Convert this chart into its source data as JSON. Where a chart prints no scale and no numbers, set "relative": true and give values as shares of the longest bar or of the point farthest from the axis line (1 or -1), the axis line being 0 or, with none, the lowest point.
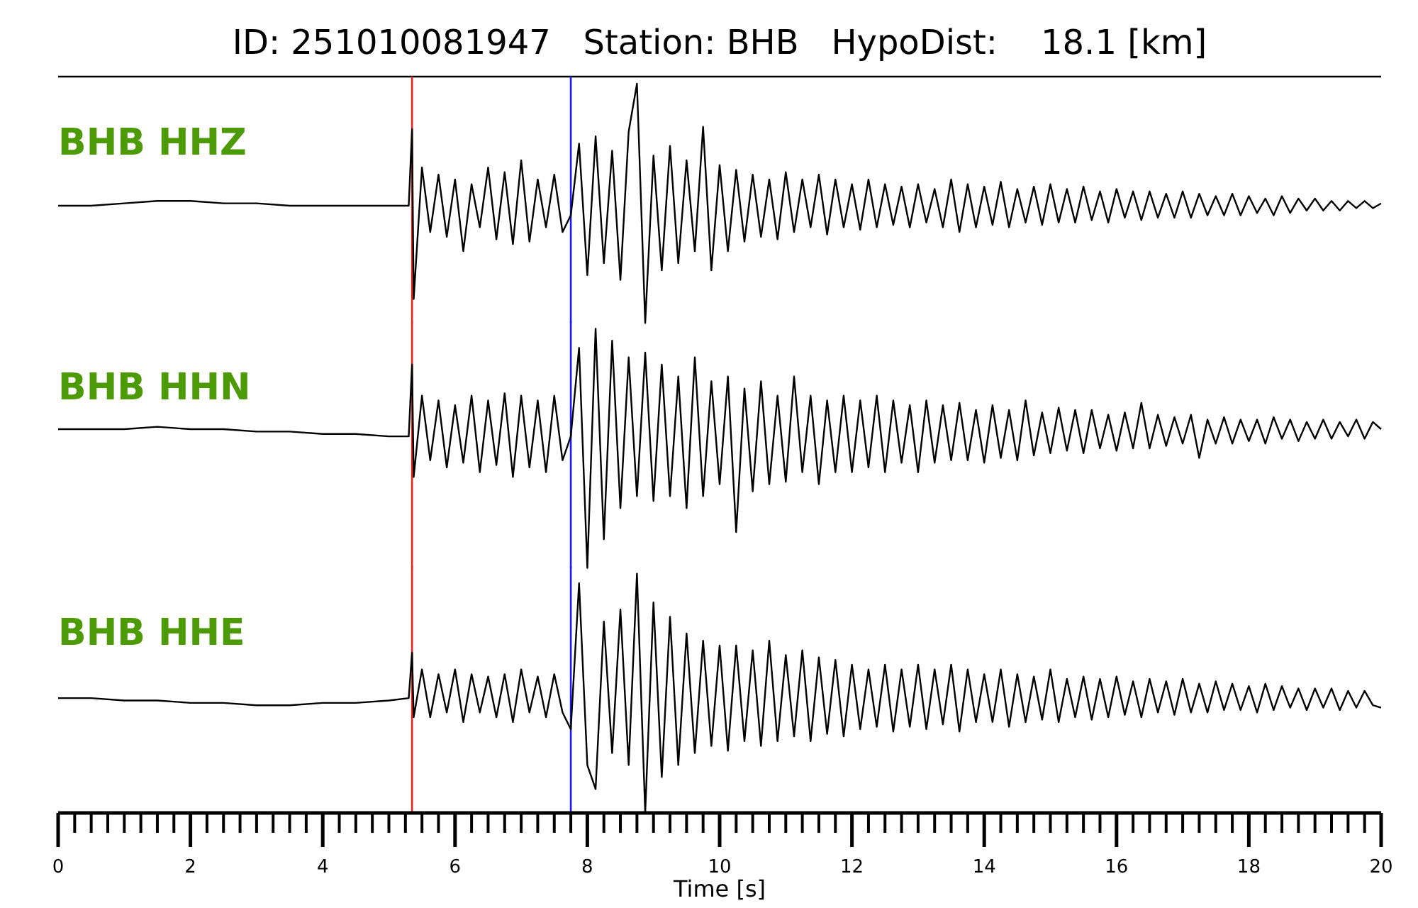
{
  "chart_data": [
    {
      "type": "line",
      "title": "ID: 251010081947   Station: BHB   HypoDist:    18.1 [km]",
      "annotations": [
        "BHB HHZ"
      ],
      "relative": true,
      "xlim": [
        0,
        20
      ],
      "tick_labels": false,
      "x": [
        0,
        0.5,
        1,
        1.5,
        2,
        2.5,
        3,
        3.5,
        4,
        4.5,
        5,
        5.3,
        5.35,
        5.375,
        5.5,
        5.625,
        5.75,
        5.875,
        6,
        6.125,
        6.25,
        6.375,
        6.5,
        6.625,
        6.75,
        6.875,
        7,
        7.125,
        7.25,
        7.375,
        7.5,
        7.625,
        7.75,
        7.875,
        8,
        8.125,
        8.25,
        8.375,
        8.5,
        8.625,
        8.75,
        8.875,
        9,
        9.125,
        9.25,
        9.375,
        9.5,
        9.625,
        9.75,
        9.875,
        10,
        10.125,
        10.25,
        10.375,
        10.5,
        10.625,
        10.75,
        10.875,
        11,
        11.125,
        11.25,
        11.375,
        11.5,
        11.625,
        11.75,
        11.875,
        12,
        12.125,
        12.25,
        12.375,
        12.5,
        12.625,
        12.75,
        12.875,
        13,
        13.125,
        13.25,
        13.375,
        13.5,
        13.625,
        13.75,
        13.875,
        14,
        14.125,
        14.25,
        14.375,
        14.5,
        14.625,
        14.75,
        14.875,
        15,
        15.125,
        15.25,
        15.375,
        15.5,
        15.625,
        15.75,
        15.875,
        16,
        16.125,
        16.25,
        16.375,
        16.5,
        16.625,
        16.75,
        16.875,
        17,
        17.125,
        17.25,
        17.375,
        17.5,
        17.625,
        17.75,
        17.875,
        18,
        18.125,
        18.25,
        18.375,
        18.5,
        18.625,
        18.75,
        18.875,
        19,
        19.125,
        19.25,
        19.375,
        19.5,
        19.625,
        19.75,
        19.875,
        20
      ],
      "series": [
        {
          "color": "#000000",
          "values": [
            0.49,
            0.49,
            0.5,
            0.51,
            0.51,
            0.5,
            0.5,
            0.49,
            0.49,
            0.49,
            0.49,
            0.49,
            0.81,
            0.1,
            0.65,
            0.38,
            0.62,
            0.36,
            0.6,
            0.3,
            0.58,
            0.4,
            0.65,
            0.35,
            0.63,
            0.33,
            0.68,
            0.34,
            0.6,
            0.4,
            0.62,
            0.38,
            0.45,
            0.75,
            0.2,
            0.78,
            0.25,
            0.72,
            0.18,
            0.8,
            1.0,
            0.0,
            0.7,
            0.22,
            0.74,
            0.25,
            0.68,
            0.3,
            0.82,
            0.22,
            0.66,
            0.3,
            0.64,
            0.34,
            0.62,
            0.36,
            0.6,
            0.35,
            0.63,
            0.38,
            0.6,
            0.4,
            0.62,
            0.37,
            0.6,
            0.4,
            0.58,
            0.39,
            0.6,
            0.4,
            0.58,
            0.41,
            0.57,
            0.4,
            0.58,
            0.42,
            0.56,
            0.4,
            0.6,
            0.38,
            0.58,
            0.4,
            0.57,
            0.41,
            0.59,
            0.4,
            0.56,
            0.42,
            0.57,
            0.41,
            0.58,
            0.42,
            0.56,
            0.42,
            0.57,
            0.43,
            0.55,
            0.42,
            0.56,
            0.44,
            0.55,
            0.43,
            0.55,
            0.44,
            0.54,
            0.44,
            0.55,
            0.44,
            0.54,
            0.45,
            0.53,
            0.45,
            0.54,
            0.45,
            0.53,
            0.46,
            0.52,
            0.45,
            0.53,
            0.46,
            0.52,
            0.47,
            0.52,
            0.47,
            0.51,
            0.47,
            0.51,
            0.48,
            0.51,
            0.48,
            0.5
          ]
        }
      ],
      "ref_lines": [
        {
          "axis": "x",
          "value": 5.35,
          "color": "#e8241c"
        },
        {
          "axis": "x",
          "value": 7.75,
          "color": "#1a1aff"
        }
      ]
    },
    {
      "type": "line",
      "annotations": [
        "BHB HHN"
      ],
      "relative": true,
      "xlim": [
        0,
        20
      ],
      "tick_labels": false,
      "x": [
        0,
        0.5,
        1,
        1.5,
        2,
        2.5,
        3,
        3.5,
        4,
        4.5,
        5,
        5.3,
        5.35,
        5.375,
        5.5,
        5.625,
        5.75,
        5.875,
        6,
        6.125,
        6.25,
        6.375,
        6.5,
        6.625,
        6.75,
        6.875,
        7,
        7.125,
        7.25,
        7.375,
        7.5,
        7.625,
        7.75,
        7.875,
        8,
        8.125,
        8.25,
        8.375,
        8.5,
        8.625,
        8.75,
        8.875,
        9,
        9.125,
        9.25,
        9.375,
        9.5,
        9.625,
        9.75,
        9.875,
        10,
        10.125,
        10.25,
        10.375,
        10.5,
        10.625,
        10.75,
        10.875,
        11,
        11.125,
        11.25,
        11.375,
        11.5,
        11.625,
        11.75,
        11.875,
        12,
        12.125,
        12.25,
        12.375,
        12.5,
        12.625,
        12.75,
        12.875,
        13,
        13.125,
        13.25,
        13.375,
        13.5,
        13.625,
        13.75,
        13.875,
        14,
        14.125,
        14.25,
        14.375,
        14.5,
        14.625,
        14.75,
        14.875,
        15,
        15.125,
        15.25,
        15.375,
        15.5,
        15.625,
        15.75,
        15.875,
        16,
        16.125,
        16.25,
        16.375,
        16.5,
        16.625,
        16.75,
        16.875,
        17,
        17.125,
        17.25,
        17.375,
        17.5,
        17.625,
        17.75,
        17.875,
        18,
        18.125,
        18.25,
        18.375,
        18.5,
        18.625,
        18.75,
        18.875,
        19,
        19.125,
        19.25,
        19.375,
        19.5,
        19.625,
        19.75,
        19.875,
        20
      ],
      "series": [
        {
          "color": "#000000",
          "values": [
            0.58,
            0.58,
            0.58,
            0.59,
            0.58,
            0.58,
            0.57,
            0.57,
            0.56,
            0.56,
            0.55,
            0.55,
            0.85,
            0.38,
            0.72,
            0.45,
            0.7,
            0.42,
            0.68,
            0.44,
            0.72,
            0.4,
            0.7,
            0.43,
            0.73,
            0.38,
            0.72,
            0.42,
            0.7,
            0.4,
            0.72,
            0.45,
            0.55,
            0.92,
            0.0,
            1.0,
            0.12,
            0.95,
            0.25,
            0.88,
            0.3,
            0.9,
            0.28,
            0.85,
            0.3,
            0.8,
            0.25,
            0.88,
            0.3,
            0.78,
            0.35,
            0.8,
            0.15,
            0.75,
            0.32,
            0.78,
            0.35,
            0.72,
            0.36,
            0.8,
            0.4,
            0.72,
            0.35,
            0.7,
            0.4,
            0.72,
            0.4,
            0.7,
            0.42,
            0.72,
            0.4,
            0.7,
            0.44,
            0.68,
            0.4,
            0.7,
            0.44,
            0.68,
            0.45,
            0.69,
            0.45,
            0.66,
            0.44,
            0.68,
            0.46,
            0.66,
            0.45,
            0.7,
            0.47,
            0.65,
            0.48,
            0.67,
            0.49,
            0.66,
            0.48,
            0.66,
            0.5,
            0.64,
            0.49,
            0.65,
            0.5,
            0.69,
            0.5,
            0.64,
            0.51,
            0.63,
            0.52,
            0.64,
            0.46,
            0.62,
            0.52,
            0.63,
            0.52,
            0.62,
            0.53,
            0.62,
            0.52,
            0.63,
            0.54,
            0.62,
            0.53,
            0.61,
            0.54,
            0.62,
            0.54,
            0.61,
            0.55,
            0.62,
            0.54,
            0.61,
            0.58
          ]
        }
      ],
      "ref_lines": [
        {
          "axis": "x",
          "value": 5.35,
          "color": "#e8241c"
        },
        {
          "axis": "x",
          "value": 7.75,
          "color": "#1a1aff"
        }
      ]
    },
    {
      "type": "line",
      "annotations": [
        "BHB HHE"
      ],
      "relative": true,
      "xlim": [
        0,
        20
      ],
      "tick_labels": "x",
      "xlabel": "Time [s]",
      "xticks": [
        0,
        {
          "value": 0.25,
          "label": null
        },
        {
          "value": 0.5,
          "label": null
        },
        {
          "value": 0.75,
          "label": null
        },
        {
          "value": 1,
          "label": null
        },
        {
          "value": 1.25,
          "label": null
        },
        {
          "value": 1.5,
          "label": null
        },
        {
          "value": 1.75,
          "label": null
        },
        2,
        {
          "value": 2.25,
          "label": null
        },
        {
          "value": 2.5,
          "label": null
        },
        {
          "value": 2.75,
          "label": null
        },
        {
          "value": 3,
          "label": null
        },
        {
          "value": 3.25,
          "label": null
        },
        {
          "value": 3.5,
          "label": null
        },
        {
          "value": 3.75,
          "label": null
        },
        4,
        {
          "value": 4.25,
          "label": null
        },
        {
          "value": 4.5,
          "label": null
        },
        {
          "value": 4.75,
          "label": null
        },
        {
          "value": 5,
          "label": null
        },
        {
          "value": 5.25,
          "label": null
        },
        {
          "value": 5.5,
          "label": null
        },
        {
          "value": 5.75,
          "label": null
        },
        6,
        {
          "value": 6.25,
          "label": null
        },
        {
          "value": 6.5,
          "label": null
        },
        {
          "value": 6.75,
          "label": null
        },
        {
          "value": 7,
          "label": null
        },
        {
          "value": 7.25,
          "label": null
        },
        {
          "value": 7.5,
          "label": null
        },
        {
          "value": 7.75,
          "label": null
        },
        8,
        {
          "value": 8.25,
          "label": null
        },
        {
          "value": 8.5,
          "label": null
        },
        {
          "value": 8.75,
          "label": null
        },
        {
          "value": 9,
          "label": null
        },
        {
          "value": 9.25,
          "label": null
        },
        {
          "value": 9.5,
          "label": null
        },
        {
          "value": 9.75,
          "label": null
        },
        10,
        {
          "value": 10.25,
          "label": null
        },
        {
          "value": 10.5,
          "label": null
        },
        {
          "value": 10.75,
          "label": null
        },
        {
          "value": 11,
          "label": null
        },
        {
          "value": 11.25,
          "label": null
        },
        {
          "value": 11.5,
          "label": null
        },
        {
          "value": 11.75,
          "label": null
        },
        12,
        {
          "value": 12.25,
          "label": null
        },
        {
          "value": 12.5,
          "label": null
        },
        {
          "value": 12.75,
          "label": null
        },
        {
          "value": 13,
          "label": null
        },
        {
          "value": 13.25,
          "label": null
        },
        {
          "value": 13.5,
          "label": null
        },
        {
          "value": 13.75,
          "label": null
        },
        14,
        {
          "value": 14.25,
          "label": null
        },
        {
          "value": 14.5,
          "label": null
        },
        {
          "value": 14.75,
          "label": null
        },
        {
          "value": 15,
          "label": null
        },
        {
          "value": 15.25,
          "label": null
        },
        {
          "value": 15.5,
          "label": null
        },
        {
          "value": 15.75,
          "label": null
        },
        16,
        {
          "value": 16.25,
          "label": null
        },
        {
          "value": 16.5,
          "label": null
        },
        {
          "value": 16.75,
          "label": null
        },
        {
          "value": 17,
          "label": null
        },
        {
          "value": 17.25,
          "label": null
        },
        {
          "value": 17.5,
          "label": null
        },
        {
          "value": 17.75,
          "label": null
        },
        18,
        {
          "value": 18.25,
          "label": null
        },
        {
          "value": 18.5,
          "label": null
        },
        {
          "value": 18.75,
          "label": null
        },
        {
          "value": 19,
          "label": null
        },
        {
          "value": 19.25,
          "label": null
        },
        {
          "value": 19.5,
          "label": null
        },
        {
          "value": 19.75,
          "label": null
        },
        20
      ],
      "x": [
        0,
        0.5,
        1,
        1.5,
        2,
        2.5,
        3,
        3.5,
        4,
        4.5,
        5,
        5.3,
        5.35,
        5.375,
        5.5,
        5.625,
        5.75,
        5.875,
        6,
        6.125,
        6.25,
        6.375,
        6.5,
        6.625,
        6.75,
        6.875,
        7,
        7.125,
        7.25,
        7.375,
        7.5,
        7.625,
        7.75,
        7.875,
        8,
        8.125,
        8.25,
        8.375,
        8.5,
        8.625,
        8.75,
        8.875,
        9,
        9.125,
        9.25,
        9.375,
        9.5,
        9.625,
        9.75,
        9.875,
        10,
        10.125,
        10.25,
        10.375,
        10.5,
        10.625,
        10.75,
        10.875,
        11,
        11.125,
        11.25,
        11.375,
        11.5,
        11.625,
        11.75,
        11.875,
        12,
        12.125,
        12.25,
        12.375,
        12.5,
        12.625,
        12.75,
        12.875,
        13,
        13.125,
        13.25,
        13.375,
        13.5,
        13.625,
        13.75,
        13.875,
        14,
        14.125,
        14.25,
        14.375,
        14.5,
        14.625,
        14.75,
        14.875,
        15,
        15.125,
        15.25,
        15.375,
        15.5,
        15.625,
        15.75,
        15.875,
        16,
        16.125,
        16.25,
        16.375,
        16.5,
        16.625,
        16.75,
        16.875,
        17,
        17.125,
        17.25,
        17.375,
        17.5,
        17.625,
        17.75,
        17.875,
        18,
        18.125,
        18.25,
        18.375,
        18.5,
        18.625,
        18.75,
        18.875,
        19,
        19.125,
        19.25,
        19.375,
        19.5,
        19.625,
        19.75,
        19.875,
        20
      ],
      "series": [
        {
          "color": "#000000",
          "values": [
            0.48,
            0.48,
            0.47,
            0.47,
            0.46,
            0.46,
            0.45,
            0.45,
            0.46,
            0.46,
            0.47,
            0.48,
            0.67,
            0.4,
            0.6,
            0.4,
            0.58,
            0.42,
            0.6,
            0.38,
            0.58,
            0.42,
            0.57,
            0.4,
            0.58,
            0.38,
            0.6,
            0.42,
            0.57,
            0.4,
            0.58,
            0.42,
            0.35,
            0.96,
            0.2,
            0.1,
            0.8,
            0.25,
            0.85,
            0.2,
            1.0,
            0.0,
            0.88,
            0.15,
            0.82,
            0.2,
            0.75,
            0.25,
            0.72,
            0.28,
            0.7,
            0.26,
            0.7,
            0.3,
            0.68,
            0.28,
            0.72,
            0.3,
            0.66,
            0.32,
            0.68,
            0.3,
            0.65,
            0.33,
            0.64,
            0.32,
            0.62,
            0.35,
            0.6,
            0.36,
            0.62,
            0.34,
            0.6,
            0.36,
            0.62,
            0.35,
            0.6,
            0.37,
            0.62,
            0.34,
            0.6,
            0.38,
            0.58,
            0.38,
            0.6,
            0.36,
            0.58,
            0.38,
            0.57,
            0.39,
            0.6,
            0.38,
            0.56,
            0.4,
            0.57,
            0.39,
            0.56,
            0.4,
            0.57,
            0.41,
            0.55,
            0.4,
            0.56,
            0.42,
            0.55,
            0.41,
            0.56,
            0.42,
            0.54,
            0.42,
            0.55,
            0.43,
            0.54,
            0.43,
            0.53,
            0.42,
            0.54,
            0.43,
            0.53,
            0.44,
            0.52,
            0.43,
            0.52,
            0.44,
            0.52,
            0.43,
            0.51,
            0.44,
            0.51,
            0.45,
            0.44
          ]
        }
      ],
      "ref_lines": [
        {
          "axis": "x",
          "value": 5.35,
          "color": "#e8241c"
        },
        {
          "axis": "x",
          "value": 7.75,
          "color": "#1a1aff"
        }
      ]
    }
  ]
}
